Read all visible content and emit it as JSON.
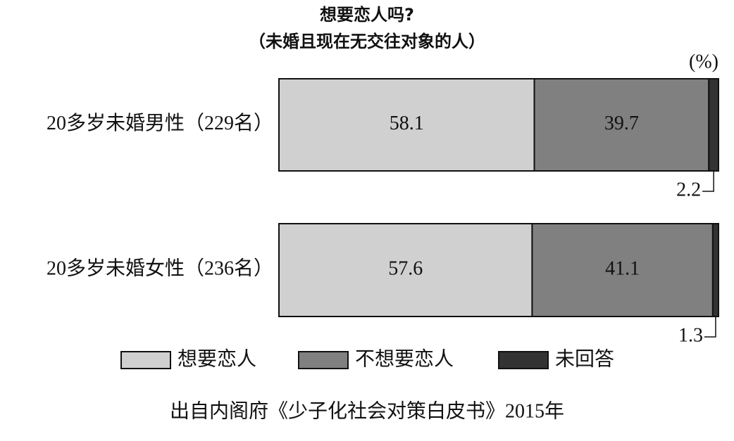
{
  "chart_data": {
    "type": "stacked-bar-horizontal",
    "title": "想要恋人吗?",
    "subtitle": "（未婚且现在无交往对象的人）",
    "unit": "(%)",
    "source": "出自内阁府《少子化社会对策白皮书》2015年",
    "categories": [
      "20多岁未婚男性（229名）",
      "20多岁未婚女性（236名）"
    ],
    "series": [
      {
        "name": "想要恋人",
        "color": "#d0d0d0",
        "values": [
          58.1,
          57.6
        ]
      },
      {
        "name": "不想要恋人",
        "color": "#808080",
        "values": [
          39.7,
          41.1
        ]
      },
      {
        "name": "未回答",
        "color": "#333333",
        "values": [
          2.2,
          1.3
        ]
      }
    ]
  }
}
